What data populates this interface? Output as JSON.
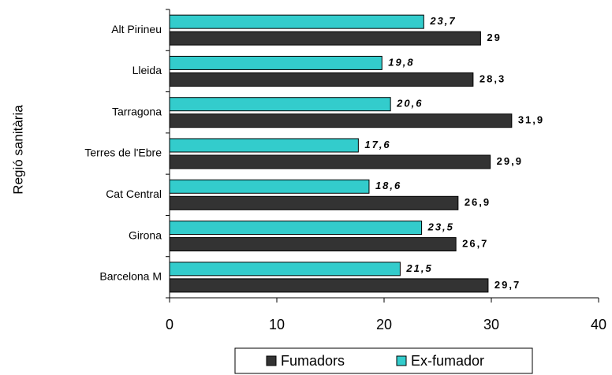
{
  "chart_data": {
    "type": "barh",
    "ylabel": "Regió sanitària",
    "categories": [
      "Alt Pirineu",
      "Lleida",
      "Tarragona",
      "Terres de l'Ebre",
      "Cat Central",
      "Girona",
      "Barcelona M"
    ],
    "series": [
      {
        "name": "Fumadors",
        "color": "#333333",
        "values": [
          29,
          28.3,
          31.9,
          29.9,
          26.9,
          26.7,
          29.7
        ],
        "value_labels": [
          "29",
          "28,3",
          "31,9",
          "29,9",
          "26,9",
          "26,7",
          "29,7"
        ]
      },
      {
        "name": "Ex-fumador",
        "color": "#33cccc",
        "values": [
          23.7,
          19.8,
          20.6,
          17.6,
          18.6,
          23.5,
          21.5
        ],
        "value_labels": [
          "23,7",
          "19,8",
          "20,6",
          "17,6",
          "18,6",
          "23,5",
          "21,5"
        ]
      }
    ],
    "xlim": [
      0,
      40
    ],
    "xticks": [
      0,
      10,
      20,
      30,
      40
    ],
    "legend": "bottom"
  }
}
